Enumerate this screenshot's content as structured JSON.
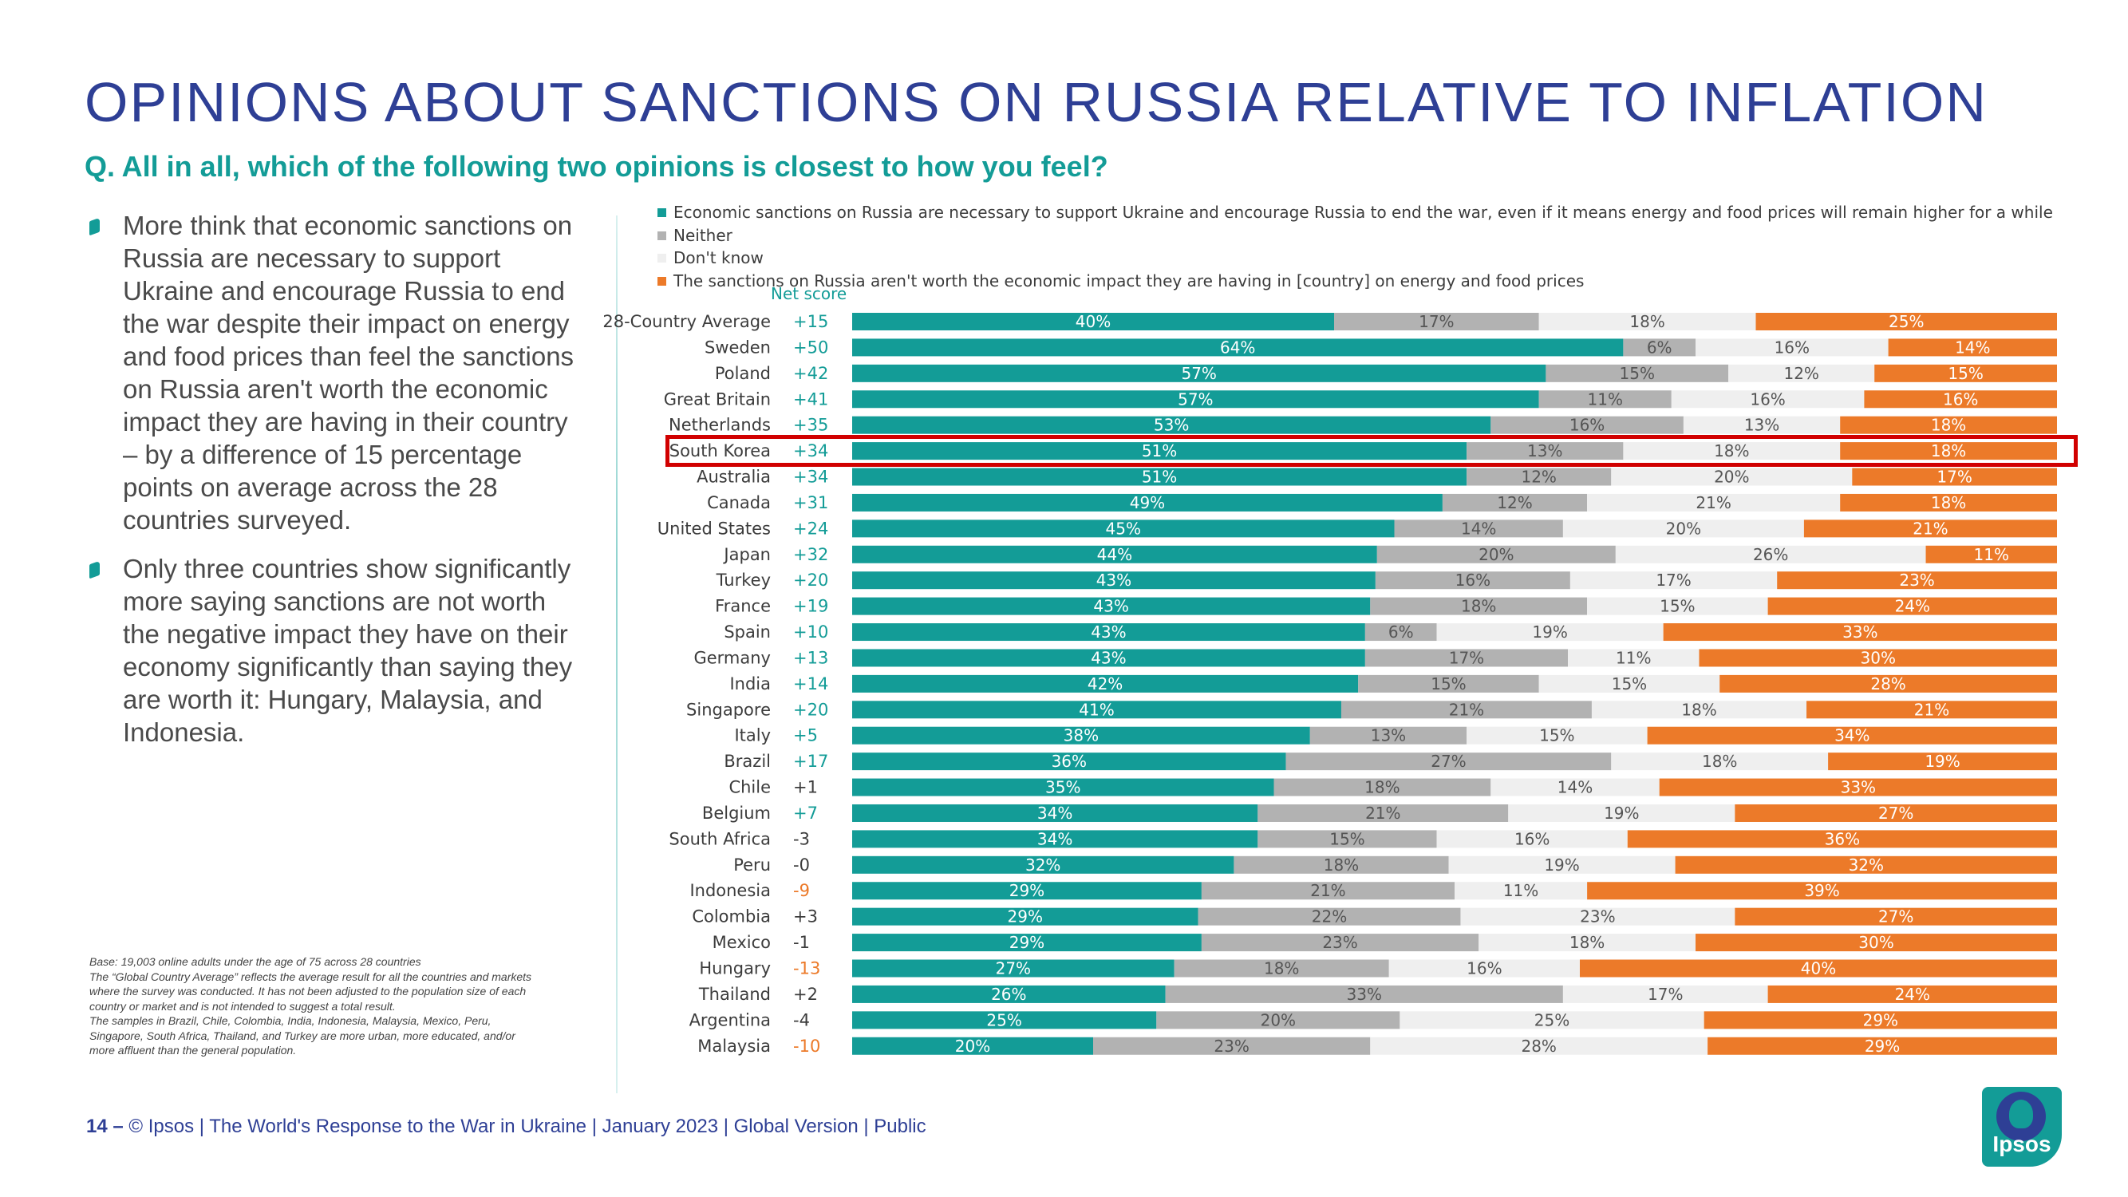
{
  "title": "OPINIONS ABOUT SANCTIONS ON RUSSIA RELATIVE TO INFLATION",
  "question": "Q. All in all, which of the following two opinions is closest to how you feel?",
  "bullets": [
    "More think that economic sanctions on Russia are necessary to support Ukraine and encourage Russia to end the war despite their impact on energy and food prices than feel the sanctions on Russia aren't worth the economic impact they are having in their country – by a difference of 15 percentage points on average across the 28 countries surveyed.",
    "Only three countries show significantly more saying sanctions are not worth the negative impact they have on their economy significantly than saying they are worth it: Hungary, Malaysia, and Indonesia."
  ],
  "footnote": "Base: 19,003 online adults under the age of 75 across 28 countries\nThe “Global Country Average” reflects the average result for all the countries and markets where the survey was conducted. It has not been adjusted to the population size of each country or market and is not intended to suggest a total result.\nThe samples in Brazil, Chile, Colombia, India, Indonesia, Malaysia, Mexico, Peru, Singapore, South Africa, Thailand, and Turkey are more urban, more educated, and/or more affluent than the general population.",
  "footer": {
    "page": "14 –",
    "text": "© Ipsos | The World's Response to the War in Ukraine | January 2023 | Global Version | Public"
  },
  "logo_text": "Ipsos",
  "colors": {
    "teal": "#139c97",
    "gray": "#b2b2b2",
    "light": "#efefef",
    "orange": "#ec7a29",
    "navy": "#2e3f95",
    "highlight": "#d10000"
  },
  "chart_data": {
    "type": "bar",
    "orientation": "horizontal",
    "stacked": true,
    "normalized": true,
    "net_score_label": "Net score",
    "highlighted_category": "South Korea",
    "legend": [
      {
        "name": "Economic sanctions on Russia are necessary to support Ukraine and encourage Russia to end the war, even if it means energy and food prices will remain higher for a while",
        "color": "#139c97"
      },
      {
        "name": "Neither",
        "color": "#b2b2b2"
      },
      {
        "name": "Don't know",
        "color": "#efefef"
      },
      {
        "name": "The sanctions on Russia aren't worth the economic impact they are having in [country] on energy and food prices",
        "color": "#ec7a29"
      }
    ],
    "categories": [
      "28-Country Average",
      "Sweden",
      "Poland",
      "Great Britain",
      "Netherlands",
      "South Korea",
      "Australia",
      "Canada",
      "United States",
      "Japan",
      "Turkey",
      "France",
      "Spain",
      "Germany",
      "India",
      "Singapore",
      "Italy",
      "Brazil",
      "Chile",
      "Belgium",
      "South Africa",
      "Peru",
      "Indonesia",
      "Colombia",
      "Mexico",
      "Hungary",
      "Thailand",
      "Argentina",
      "Malaysia"
    ],
    "net_scores": [
      "+15",
      "+50",
      "+42",
      "+41",
      "+35",
      "+34",
      "+34",
      "+31",
      "+24",
      "+32",
      "+20",
      "+19",
      "+10",
      "+13",
      "+14",
      "+20",
      "+5",
      "+17",
      "+1",
      "+7",
      "-3",
      "-0",
      "-9",
      "+3",
      "-1",
      "-13",
      "+2",
      "-4",
      "-10"
    ],
    "series": [
      {
        "name": "Economic sanctions on Russia are necessary",
        "values": [
          40,
          64,
          57,
          57,
          53,
          51,
          51,
          49,
          45,
          44,
          43,
          43,
          43,
          43,
          42,
          41,
          38,
          36,
          35,
          34,
          34,
          32,
          29,
          29,
          29,
          27,
          26,
          25,
          20
        ]
      },
      {
        "name": "Neither",
        "values": [
          17,
          6,
          15,
          11,
          16,
          13,
          12,
          12,
          14,
          20,
          16,
          18,
          6,
          17,
          15,
          21,
          13,
          27,
          18,
          21,
          15,
          18,
          21,
          22,
          23,
          18,
          33,
          20,
          23
        ]
      },
      {
        "name": "Don't know",
        "values": [
          18,
          16,
          12,
          16,
          13,
          18,
          20,
          21,
          20,
          26,
          17,
          15,
          19,
          11,
          15,
          18,
          15,
          18,
          14,
          19,
          16,
          19,
          11,
          23,
          18,
          16,
          17,
          25,
          28
        ]
      },
      {
        "name": "The sanctions on Russia aren't worth the economic impact",
        "values": [
          25,
          14,
          15,
          16,
          18,
          18,
          17,
          18,
          21,
          11,
          23,
          24,
          33,
          30,
          28,
          21,
          34,
          19,
          33,
          27,
          36,
          32,
          39,
          27,
          30,
          40,
          24,
          29,
          29
        ]
      }
    ]
  }
}
